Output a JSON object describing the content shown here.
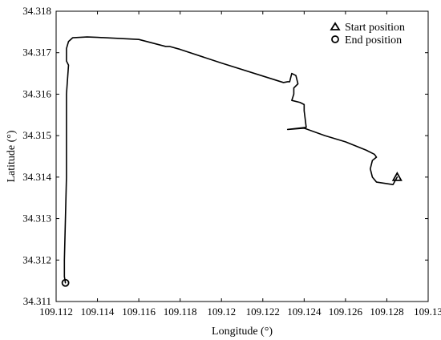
{
  "chart_data": {
    "type": "line",
    "xlabel": "Longitude (°)",
    "ylabel": "Latitude (°)",
    "xlim": [
      109.112,
      109.13
    ],
    "ylim": [
      34.311,
      34.318
    ],
    "xticks": [
      "109.112",
      "109.114",
      "109.116",
      "109.118",
      "109.12",
      "109.122",
      "109.124",
      "109.126",
      "109.128",
      "109.13"
    ],
    "yticks": [
      "34.311",
      "34.312",
      "34.313",
      "34.314",
      "34.315",
      "34.316",
      "34.317",
      "34.318"
    ],
    "grid": false,
    "legend_position": "top-right",
    "series": [
      {
        "x": [
          109.1285,
          109.1283,
          109.1275,
          109.1273,
          109.1272,
          109.1273,
          109.1275,
          109.1274,
          109.127,
          109.126,
          109.125,
          109.124,
          109.1232,
          109.1241,
          109.124,
          109.124,
          109.1238,
          109.1234,
          109.1235,
          109.1235,
          109.1237,
          109.1236,
          109.1234,
          109.1233,
          109.1232,
          109.123,
          109.12,
          109.118,
          109.1175,
          109.1173,
          109.116,
          109.114,
          109.1135,
          109.1128,
          109.1126,
          109.1125,
          109.1125,
          109.1126,
          109.1125,
          109.1125,
          109.1124,
          109.1124,
          109.11245
        ],
        "y": [
          34.314,
          34.31382,
          34.31388,
          34.314,
          34.3142,
          34.3144,
          34.31448,
          34.31455,
          34.31465,
          34.31485,
          34.315,
          34.31518,
          34.31515,
          34.3152,
          34.3156,
          34.31575,
          34.3158,
          34.31585,
          34.316,
          34.31615,
          34.31625,
          34.31645,
          34.3165,
          34.3163,
          34.3163,
          34.31628,
          34.31675,
          34.31708,
          34.31715,
          34.31715,
          34.31732,
          34.31737,
          34.31738,
          34.31736,
          34.31727,
          34.3171,
          34.3168,
          34.3167,
          34.316,
          34.314,
          34.312,
          34.3116,
          34.31145
        ]
      }
    ],
    "legend": [
      {
        "label": "Start position",
        "marker": "triangle"
      },
      {
        "label": "End position",
        "marker": "circle"
      }
    ],
    "start_point": {
      "x": 109.1285,
      "y": 34.314
    },
    "end_point": {
      "x": 109.11245,
      "y": 34.31145
    }
  }
}
